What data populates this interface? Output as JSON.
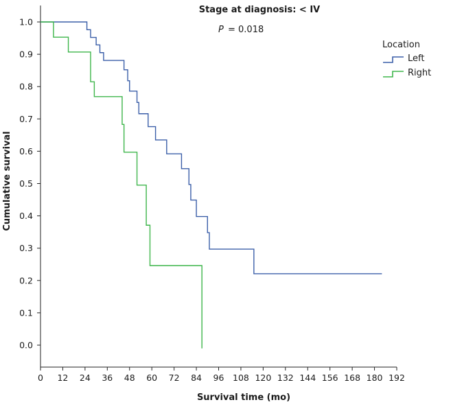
{
  "chart_data": {
    "type": "line",
    "subtype": "kaplan-meier step",
    "title": "Stage at diagnosis: < IV",
    "annotation_p_label": "P",
    "annotation_p_value": "= 0.018",
    "xlabel": "Survival time (mo)",
    "ylabel": "Cumulative survival",
    "xlim": [
      0,
      192
    ],
    "ylim": [
      -0.1,
      1.0
    ],
    "xticks": [
      0,
      12,
      24,
      36,
      48,
      60,
      72,
      84,
      96,
      108,
      120,
      132,
      144,
      156,
      168,
      180,
      192
    ],
    "yticks": [
      0.0,
      0.1,
      0.2,
      0.3,
      0.4,
      0.5,
      0.6,
      0.7,
      0.8,
      0.9,
      1.0
    ],
    "ytick_labels": [
      "0.0",
      "0.1",
      "0.2",
      "0.3",
      "0.4",
      "0.5",
      "0.6",
      "0.7",
      "0.8",
      "0.9",
      "1.0"
    ],
    "grid": false,
    "legend": {
      "title": "Location",
      "position": "top-right",
      "entries": [
        "Left",
        "Right"
      ]
    },
    "series": [
      {
        "name": "Left",
        "color": "#3a5ea8",
        "points": [
          [
            0,
            1.0
          ],
          [
            25,
            1.0
          ],
          [
            25,
            0.976
          ],
          [
            27,
            0.976
          ],
          [
            27,
            0.952
          ],
          [
            30,
            0.952
          ],
          [
            30,
            0.929
          ],
          [
            32,
            0.929
          ],
          [
            32,
            0.905
          ],
          [
            34,
            0.905
          ],
          [
            34,
            0.881
          ],
          [
            45,
            0.881
          ],
          [
            45,
            0.852
          ],
          [
            47,
            0.852
          ],
          [
            47,
            0.818
          ],
          [
            48,
            0.818
          ],
          [
            48,
            0.786
          ],
          [
            52,
            0.786
          ],
          [
            52,
            0.751
          ],
          [
            53,
            0.751
          ],
          [
            53,
            0.716
          ],
          [
            58,
            0.716
          ],
          [
            58,
            0.676
          ],
          [
            62,
            0.676
          ],
          [
            62,
            0.635
          ],
          [
            68,
            0.635
          ],
          [
            68,
            0.592
          ],
          [
            76,
            0.592
          ],
          [
            76,
            0.546
          ],
          [
            80,
            0.546
          ],
          [
            80,
            0.497
          ],
          [
            81,
            0.497
          ],
          [
            81,
            0.449
          ],
          [
            84,
            0.449
          ],
          [
            84,
            0.398
          ],
          [
            90,
            0.398
          ],
          [
            90,
            0.348
          ],
          [
            91,
            0.348
          ],
          [
            91,
            0.297
          ],
          [
            115,
            0.297
          ],
          [
            115,
            0.221
          ],
          [
            184,
            0.221
          ]
        ]
      },
      {
        "name": "Right",
        "color": "#3db54a",
        "points": [
          [
            0,
            1.0
          ],
          [
            7,
            1.0
          ],
          [
            7,
            0.953
          ],
          [
            15,
            0.953
          ],
          [
            15,
            0.907
          ],
          [
            27,
            0.907
          ],
          [
            27,
            0.815
          ],
          [
            29,
            0.815
          ],
          [
            29,
            0.769
          ],
          [
            44,
            0.769
          ],
          [
            44,
            0.683
          ],
          [
            45,
            0.683
          ],
          [
            45,
            0.597
          ],
          [
            52,
            0.597
          ],
          [
            52,
            0.495
          ],
          [
            57,
            0.495
          ],
          [
            57,
            0.371
          ],
          [
            59,
            0.371
          ],
          [
            59,
            0.246
          ],
          [
            87,
            0.246
          ],
          [
            87,
            -0.01
          ]
        ]
      }
    ]
  }
}
